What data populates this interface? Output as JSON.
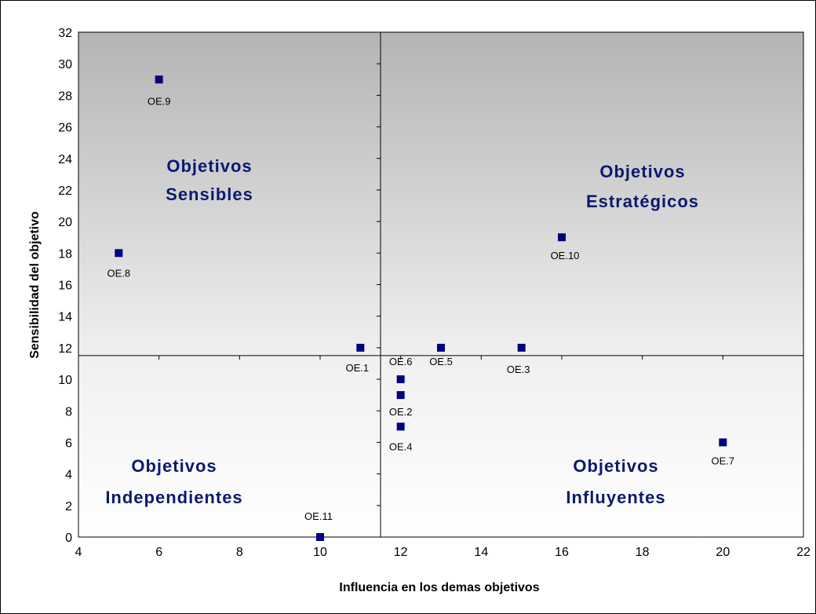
{
  "chart_data": {
    "type": "scatter",
    "title": "",
    "xlabel": "Influencia en los demas objetivos",
    "ylabel": "Sensibilidad del objetivo",
    "xlim": [
      4,
      22
    ],
    "ylim": [
      0,
      32
    ],
    "xticks": [
      4,
      6,
      8,
      10,
      12,
      14,
      16,
      18,
      20,
      22
    ],
    "yticks": [
      0,
      2,
      4,
      6,
      8,
      10,
      12,
      14,
      16,
      18,
      20,
      22,
      24,
      26,
      28,
      30,
      32
    ],
    "grid": false,
    "divider_x": 11.5,
    "divider_y": 11.5,
    "marker_color": "#000080",
    "points": [
      {
        "label": "OE.9",
        "x": 6,
        "y": 29
      },
      {
        "label": "OE.8",
        "x": 5,
        "y": 18
      },
      {
        "label": "OE.1",
        "x": 11,
        "y": 12
      },
      {
        "label": "OE.6",
        "x": 12,
        "y": 10
      },
      {
        "label": "OE.2",
        "x": 12,
        "y": 9
      },
      {
        "label": "OE.4",
        "x": 12,
        "y": 7
      },
      {
        "label": "OE.5",
        "x": 13,
        "y": 12
      },
      {
        "label": "OE.3",
        "x": 15,
        "y": 12
      },
      {
        "label": "OE.10",
        "x": 16,
        "y": 19
      },
      {
        "label": "OE.7",
        "x": 20,
        "y": 6
      },
      {
        "label": "OE.11",
        "x": 10,
        "y": 0
      }
    ],
    "quadrants": {
      "top_left": [
        "Objetivos",
        "Sensibles"
      ],
      "top_right": [
        "Objetivos",
        "Estratégicos"
      ],
      "bottom_left": [
        "Objetivos",
        "Independientes"
      ],
      "bottom_right": [
        "Objetivos",
        "Influyentes"
      ]
    }
  }
}
